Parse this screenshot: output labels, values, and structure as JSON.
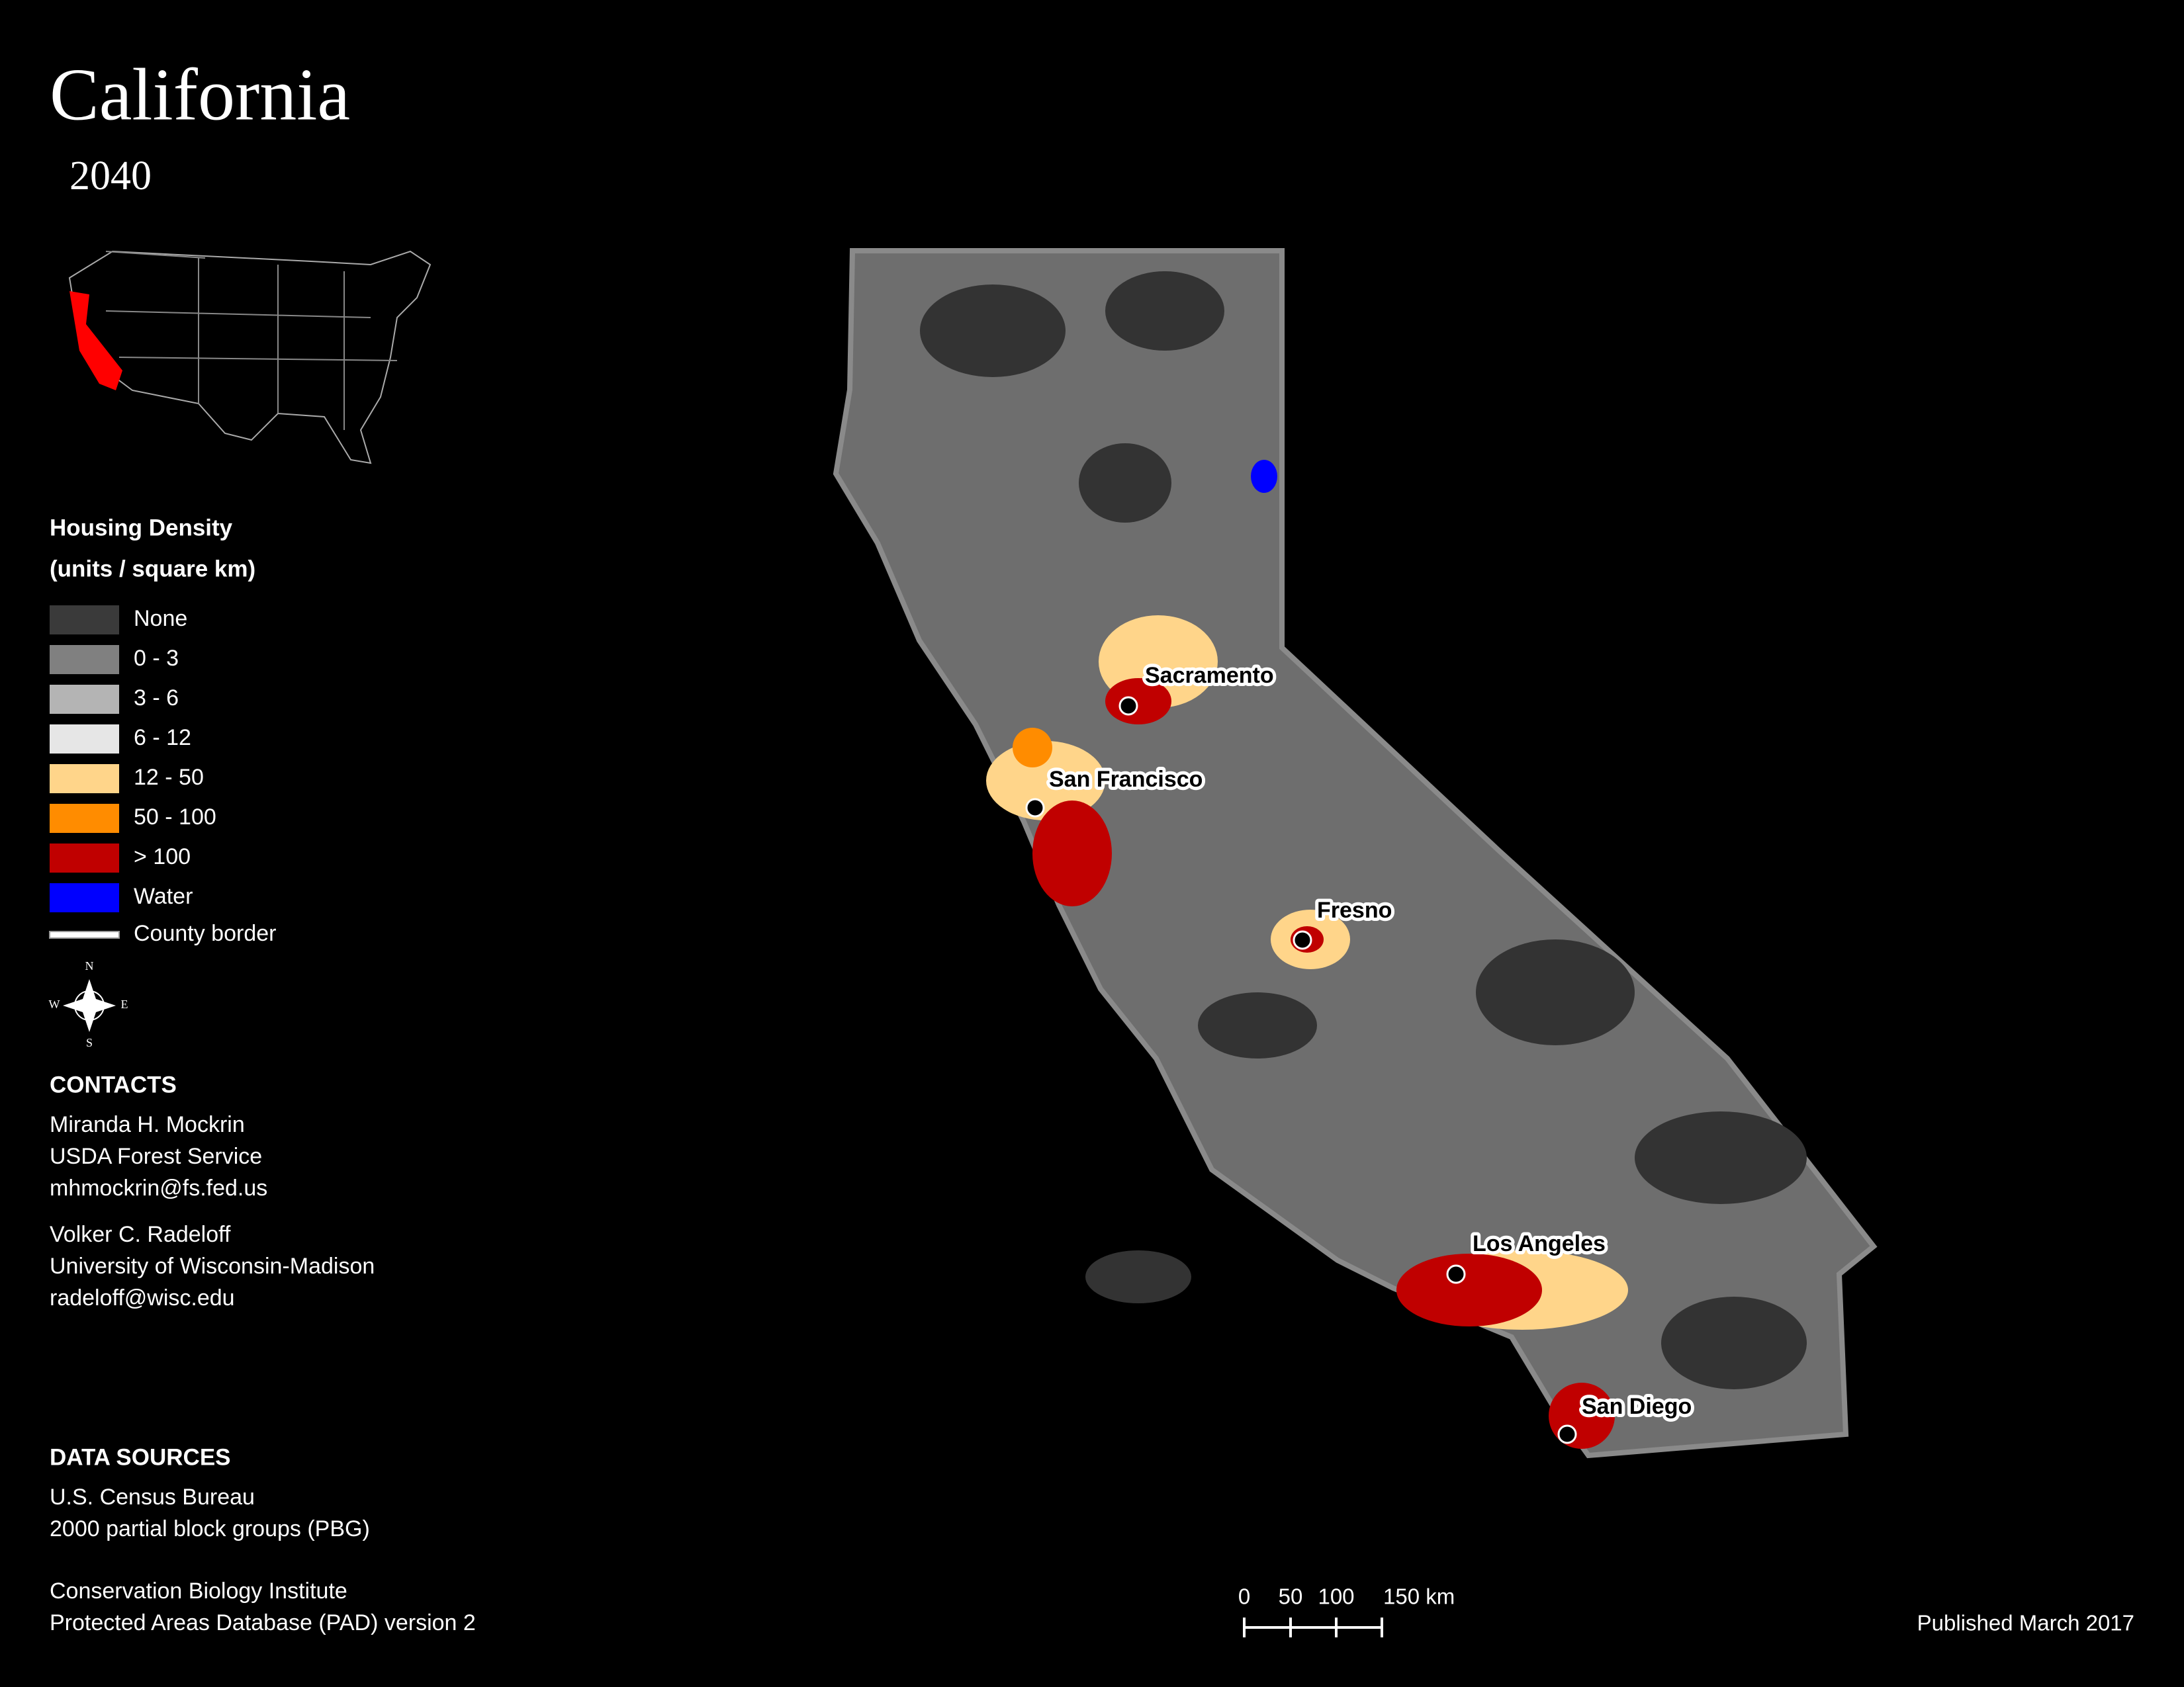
{
  "title": "California",
  "subtitle": "2040",
  "legend": {
    "title": "Housing Density",
    "units": "(units / square km)",
    "items": [
      {
        "label": "None",
        "color": "#3a3a3a"
      },
      {
        "label": "0 - 3",
        "color": "#808080"
      },
      {
        "label": "3 - 6",
        "color": "#b4b4b4"
      },
      {
        "label": "6 - 12",
        "color": "#e6e6e6"
      },
      {
        "label": "12 - 50",
        "color": "#ffd58a"
      },
      {
        "label": "50 - 100",
        "color": "#ff8c00"
      },
      {
        "label": "> 100",
        "color": "#c00000"
      },
      {
        "label": "Water",
        "color": "#0000ff"
      }
    ],
    "border": {
      "label": "County border",
      "color": "#ffffff"
    }
  },
  "compass": {
    "n": "N",
    "w": "W",
    "e": "E",
    "s": "S"
  },
  "contacts": {
    "heading": "CONTACTS",
    "people": [
      [
        "Miranda H. Mockrin",
        "USDA Forest Service",
        "mhmockrin@fs.fed.us"
      ],
      [
        "Volker C. Radeloff",
        "University of Wisconsin-Madison",
        "radeloff@wisc.edu"
      ]
    ]
  },
  "data_sources": {
    "heading": "DATA SOURCES",
    "groups": [
      [
        "U.S. Census Bureau",
        "2000 partial block groups (PBG)"
      ],
      [
        "Conservation Biology Institute",
        "Protected Areas Database (PAD) version 2"
      ]
    ]
  },
  "scale_bar": [
    "0",
    "50",
    "100",
    "150 km"
  ],
  "cities": [
    "Sacramento",
    "San Francisco",
    "Fresno",
    "Los Angeles",
    "San Diego"
  ],
  "published": "Published March 2017"
}
